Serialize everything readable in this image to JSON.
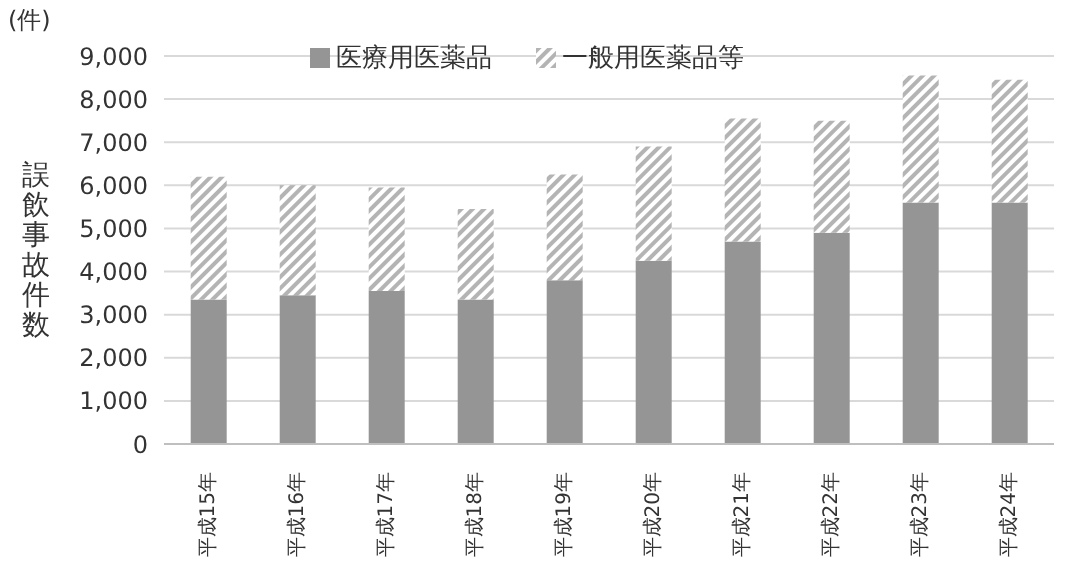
{
  "chart_data": {
    "type": "bar",
    "stacked": true,
    "ylabel": "誤飲事故件数",
    "annotations": [
      "(件)"
    ],
    "categories": [
      "平成15年",
      "平成16年",
      "平成17年",
      "平成18年",
      "平成19年",
      "平成20年",
      "平成21年",
      "平成22年",
      "平成23年",
      "平成24年"
    ],
    "series": [
      {
        "name": "医療用医薬品",
        "color": "#959595",
        "values": [
          3350,
          3450,
          3550,
          3350,
          3800,
          4250,
          4700,
          4900,
          5600,
          5600
        ]
      },
      {
        "name": "一般用医薬品等",
        "color": "#b4b4b4",
        "values": [
          2850,
          2550,
          2400,
          2100,
          2450,
          2650,
          2850,
          2600,
          2950,
          2850
        ]
      }
    ],
    "ylim": [
      0,
      9000
    ],
    "yticks": [
      {
        "value": 0,
        "label": "0"
      },
      {
        "value": 1000,
        "label": "1,000"
      },
      {
        "value": 2000,
        "label": "2,000"
      },
      {
        "value": 3000,
        "label": "3,000"
      },
      {
        "value": 4000,
        "label": "4,000"
      },
      {
        "value": 5000,
        "label": "5,000"
      },
      {
        "value": 6000,
        "label": "6,000"
      },
      {
        "value": 7000,
        "label": "7,000"
      },
      {
        "value": 8000,
        "label": "8,000"
      },
      {
        "value": 9000,
        "label": "9,000"
      }
    ],
    "grid": "y",
    "legend": "top"
  }
}
